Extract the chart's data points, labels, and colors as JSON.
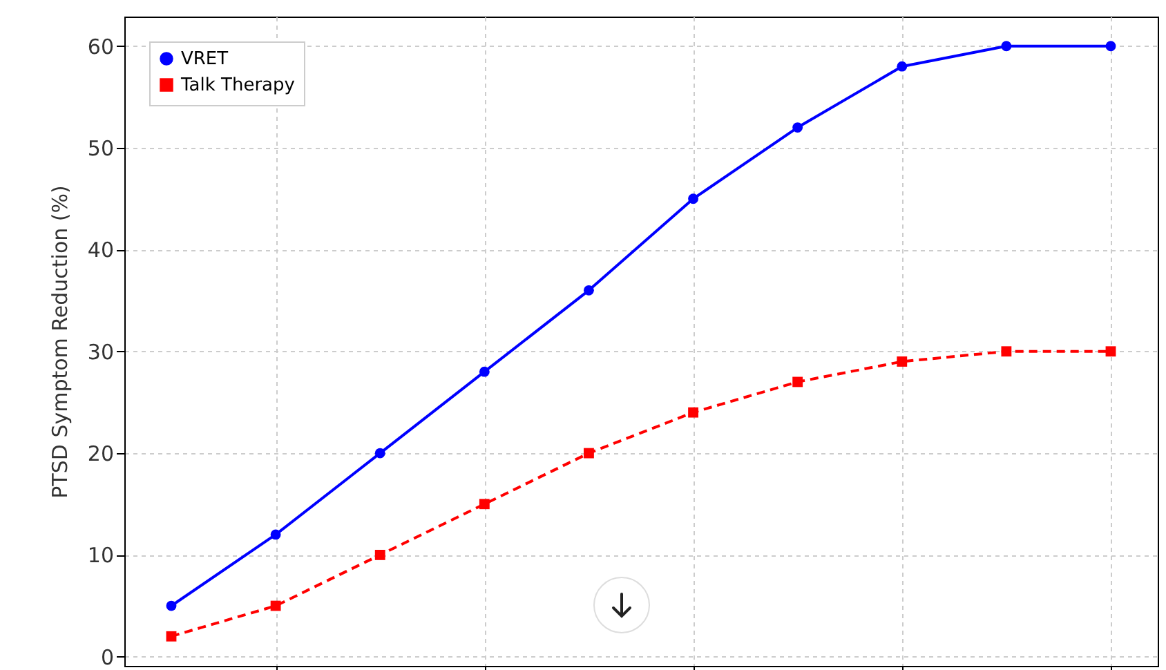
{
  "chart_data": {
    "type": "line",
    "ylabel": "PTSD Symptom Reduction (%)",
    "categories": [
      null,
      null,
      null,
      null,
      null,
      null,
      null,
      null,
      null,
      null
    ],
    "series": [
      {
        "name": "VRET",
        "color": "#0000ff",
        "marker": "circle",
        "line_style": "solid",
        "values": [
          5,
          12,
          20,
          28,
          36,
          45,
          52,
          58,
          60,
          60
        ]
      },
      {
        "name": "Talk Therapy",
        "color": "#ff0000",
        "marker": "square",
        "line_style": "dashed",
        "values": [
          2,
          5,
          10,
          15,
          20,
          24,
          27,
          29,
          30,
          30
        ]
      }
    ],
    "ylim": [
      -0.9,
      62.9
    ],
    "yticks": [
      0,
      10,
      20,
      30,
      40,
      50,
      60
    ],
    "tick_labels": "y",
    "grid": true,
    "legend": "top left"
  }
}
